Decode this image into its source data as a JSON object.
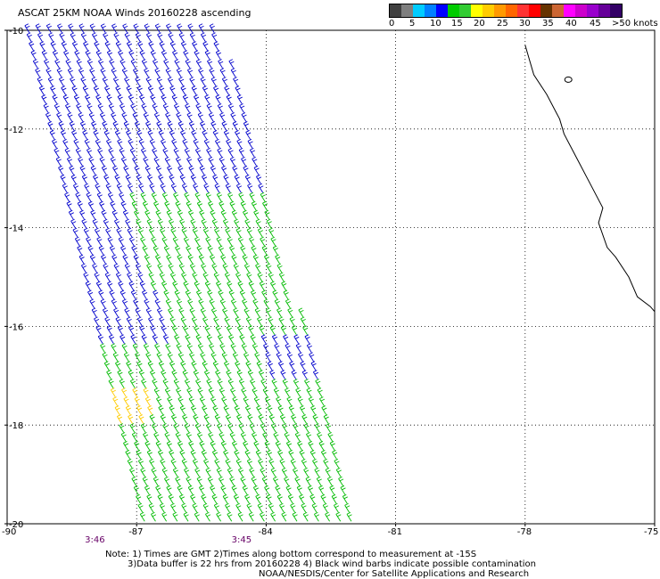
{
  "title": "ASCAT 25KM NOAA Winds 20160228 ascending",
  "colorbar": {
    "colors": [
      "#404040",
      "#7f7f7f",
      "#00ccff",
      "#0080ff",
      "#0000ff",
      "#00cc00",
      "#33cc33",
      "#ffff00",
      "#ffcc00",
      "#ff9900",
      "#ff6600",
      "#ff3333",
      "#ff0000",
      "#663300",
      "#cc6633",
      "#ff00ff",
      "#cc00cc",
      "#9900cc",
      "#660099",
      "#330066"
    ],
    "labels": [
      "0",
      "5",
      "10",
      "15",
      "20",
      "25",
      "30",
      "35",
      "40",
      "45",
      ">50 knots"
    ]
  },
  "axes": {
    "lon_ticks": [
      "-90",
      "-87",
      "-84",
      "-81",
      "-78",
      "-75"
    ],
    "lat_ticks": [
      "-10",
      "-12",
      "-14",
      "-16",
      "-18",
      "-20"
    ],
    "lon_range": [
      -90,
      -75
    ],
    "lat_range": [
      -20,
      -10
    ],
    "grid": "dotted"
  },
  "time_labels": [
    {
      "text": "3:46",
      "lon": -88.2
    },
    {
      "text": "3:45",
      "lon": -84.8
    }
  ],
  "notes": [
    "Note: 1) Times are GMT 2)Times along bottom correspond to measurement at -15S",
    "3)Data buffer is 22 hrs from 20160228 4) Black wind barbs indicate possible contamination",
    "NOAA/NESDIS/Center for Satellite Applications and Research"
  ],
  "map_data": {
    "type": "wind-barbs",
    "swath": {
      "top": [
        [
          -89.5,
          -10
        ],
        [
          -85.0,
          -10
        ]
      ],
      "bottom": [
        [
          -86.8,
          -20
        ],
        [
          -81.8,
          -20
        ]
      ]
    },
    "wind_regions": [
      {
        "name": "blue",
        "color": "#0000cc",
        "speed_knots": 12,
        "direction_deg": 135
      },
      {
        "name": "green",
        "color": "#00bb00",
        "speed_knots": 17,
        "direction_deg": 150
      },
      {
        "name": "yellow",
        "color": "#ffcc00",
        "speed_knots": 22,
        "direction_deg": 160
      }
    ],
    "coastline": [
      [
        -78.0,
        -10.3
      ],
      [
        -77.8,
        -10.9
      ],
      [
        -77.5,
        -11.3
      ],
      [
        -77.2,
        -11.8
      ],
      [
        -77.1,
        -12.1
      ],
      [
        -76.8,
        -12.6
      ],
      [
        -76.5,
        -13.1
      ],
      [
        -76.2,
        -13.6
      ],
      [
        -76.3,
        -13.9
      ],
      [
        -76.1,
        -14.4
      ],
      [
        -75.9,
        -14.6
      ],
      [
        -75.6,
        -15.0
      ],
      [
        -75.4,
        -15.4
      ],
      [
        -75.1,
        -15.6
      ],
      [
        -75.0,
        -15.7
      ]
    ]
  }
}
